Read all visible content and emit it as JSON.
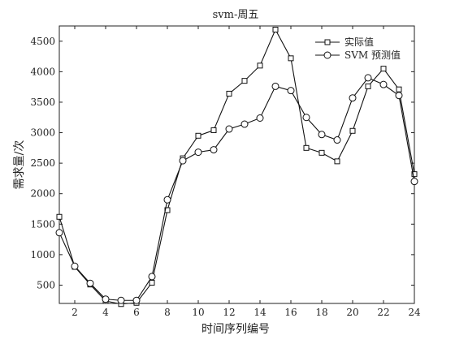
{
  "chart_data": {
    "type": "line",
    "title": "svm-周五",
    "xlabel": "时间序列编号",
    "ylabel": "需求量/次",
    "xlim": [
      1,
      24
    ],
    "ylim": [
      200,
      4750
    ],
    "x_ticks": [
      2,
      4,
      6,
      8,
      10,
      12,
      14,
      16,
      18,
      20,
      22,
      24
    ],
    "y_ticks": [
      500,
      1000,
      1500,
      2000,
      2500,
      3000,
      3500,
      4000,
      4500
    ],
    "grid": false,
    "legend_position": "top-right",
    "x": [
      1,
      2,
      3,
      4,
      5,
      6,
      7,
      8,
      9,
      10,
      11,
      12,
      13,
      14,
      15,
      16,
      17,
      18,
      19,
      20,
      21,
      22,
      23,
      24
    ],
    "series": [
      {
        "name": "实际值",
        "marker": "square",
        "color": "#111111",
        "values": [
          1620,
          800,
          510,
          240,
          190,
          210,
          540,
          1730,
          2580,
          2950,
          3040,
          3640,
          3850,
          4100,
          4690,
          4220,
          2750,
          2670,
          2530,
          3030,
          3760,
          4050,
          3710,
          2320
        ]
      },
      {
        "name": "SVM 预测值",
        "marker": "circle",
        "color": "#111111",
        "values": [
          1360,
          810,
          530,
          270,
          250,
          250,
          640,
          1900,
          2540,
          2680,
          2720,
          3060,
          3140,
          3240,
          3760,
          3690,
          3250,
          2970,
          2880,
          3570,
          3900,
          3790,
          3610,
          2200
        ]
      }
    ]
  }
}
